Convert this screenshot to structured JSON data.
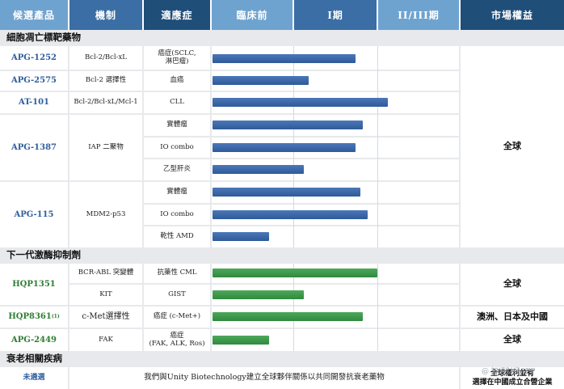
{
  "headers": {
    "candidate": "候選產品",
    "mechanism": "機制",
    "indication": "適應症",
    "preclinical": "臨床前",
    "phase1": "I期",
    "phase23": "II/III期",
    "market": "市場權益"
  },
  "colors": {
    "header_dark": "#1f4e79",
    "header_mid": "#3a6ea5",
    "header_light": "#6fa3cf",
    "bar_blue": "#3a66a8",
    "bar_green": "#3a9a4a",
    "section_bg": "#e7e9ec"
  },
  "sections": {
    "s1": "細胞凋亡標靶藥物",
    "s2": "下一代激酶抑制劑",
    "s3": "衰老相關疾病"
  },
  "rows": {
    "apg1252": {
      "candidate": "APG-1252",
      "mechanism": "Bcl-2/Bcl-xL",
      "indication": "癌症(SCLC,\n淋巴瘤)"
    },
    "apg2575": {
      "candidate": "APG-2575",
      "mechanism": "Bcl-2 選擇性",
      "indication": "血癌"
    },
    "at101": {
      "candidate": "AT-101",
      "mechanism": "Bcl-2/Bcl-xL/Mcl-1",
      "indication": "CLL"
    },
    "apg1387": {
      "candidate": "APG-1387",
      "mechanism": "IAP 二聚物",
      "ind1": "實體瘤",
      "ind2": "IO combo",
      "ind3": "乙型肝炎"
    },
    "apg115": {
      "candidate": "APG-115",
      "mechanism": "MDM2-p53",
      "ind1": "實體瘤",
      "ind2": "IO combo",
      "ind3": "乾性 AMD"
    },
    "hqp1351": {
      "candidate": "HQP1351",
      "mech1": "BCR-ABL 突變體",
      "ind1": "抗藥性 CML",
      "mech2": "KIT",
      "ind2": "GIST"
    },
    "hqp8361": {
      "candidate": "HQP8361",
      "footnote": "(1)",
      "mechanism": "c-Met選擇性",
      "indication": "癌症 (c-Met+)"
    },
    "apg2449": {
      "candidate": "APG-2449",
      "mechanism": "FAK",
      "indication": "癌症\n(FAK, ALK, Ros)"
    },
    "senescence": {
      "candidate": "未遴選",
      "description": "我們與Unity Biotechnology建立全球夥伴關係以共同開發抗衰老藥物"
    }
  },
  "markets": {
    "apoptosis": "全球",
    "hqp1351": "全球",
    "hqp8361": "澳洲、日本及中國",
    "apg2449": "全球",
    "senescence_line1": "全球權利並有",
    "senescence_line2": "選擇在中國成立合營企業"
  },
  "watermark": "@ 智通财经APP",
  "progress": {
    "axis_note": "0 = start of preclinical, 1 = end of Phase II/III",
    "apg1252": 0.58,
    "apg2575": 0.39,
    "at101": 0.71,
    "apg1387_1": 0.61,
    "apg1387_2": 0.58,
    "apg1387_3": 0.37,
    "apg115_1": 0.6,
    "apg115_2": 0.63,
    "apg115_3": 0.23,
    "hqp1351_1": 0.67,
    "hqp1351_2": 0.37,
    "hqp8361": 0.61,
    "apg2449": 0.23
  }
}
